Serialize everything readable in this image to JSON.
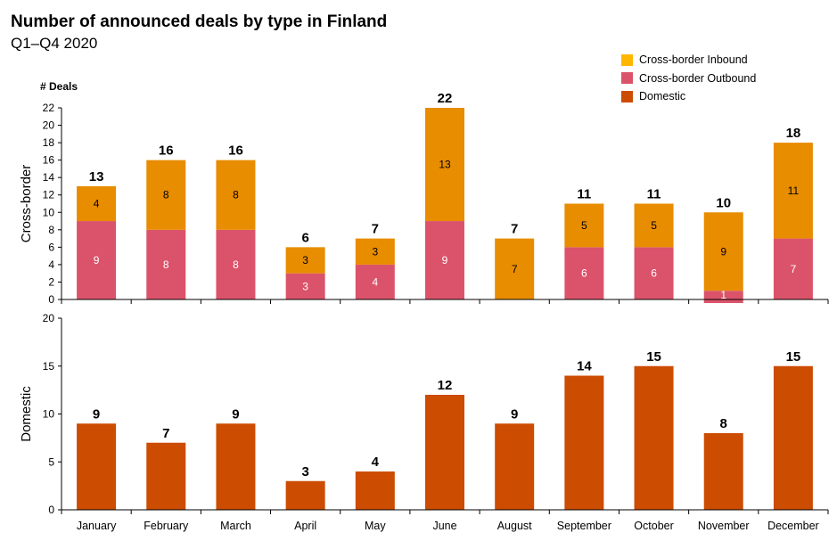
{
  "chart_data": {
    "type": "bar",
    "title": "Number of announced deals by type in Finland",
    "subtitle": "Q1–Q4 2020",
    "categories": [
      "January",
      "February",
      "March",
      "April",
      "May",
      "June",
      "August",
      "September",
      "October",
      "November",
      "December"
    ],
    "colors": {
      "inbound": "#E88C00",
      "outbound": "#DB536A",
      "domestic": "#CC4C02",
      "legend_inbound": "#FFB600"
    },
    "legend": {
      "placement": "top-right",
      "entries": [
        "Cross-border Inbound",
        "Cross-border Outbound",
        "Domestic"
      ]
    },
    "panels": [
      {
        "ylabel": "Cross-border",
        "unit_label": "# Deals",
        "ylim": [
          0,
          22
        ],
        "yticks": [
          0,
          2,
          4,
          6,
          8,
          10,
          12,
          14,
          16,
          18,
          20,
          22
        ],
        "stacked": true,
        "series": [
          {
            "name": "Cross-border Outbound",
            "values": [
              9,
              8,
              8,
              3,
              4,
              9,
              0,
              6,
              6,
              1,
              7
            ]
          },
          {
            "name": "Cross-border Inbound",
            "values": [
              4,
              8,
              8,
              3,
              3,
              13,
              7,
              5,
              5,
              9,
              11
            ]
          }
        ],
        "totals": [
          13,
          16,
          16,
          6,
          7,
          22,
          7,
          11,
          11,
          10,
          18
        ]
      },
      {
        "ylabel": "Domestic",
        "ylim": [
          0,
          20
        ],
        "yticks": [
          0,
          5,
          10,
          15,
          20
        ],
        "stacked": false,
        "series": [
          {
            "name": "Domestic",
            "values": [
              9,
              7,
              9,
              3,
              4,
              12,
              9,
              14,
              15,
              8,
              15
            ]
          }
        ]
      }
    ]
  }
}
